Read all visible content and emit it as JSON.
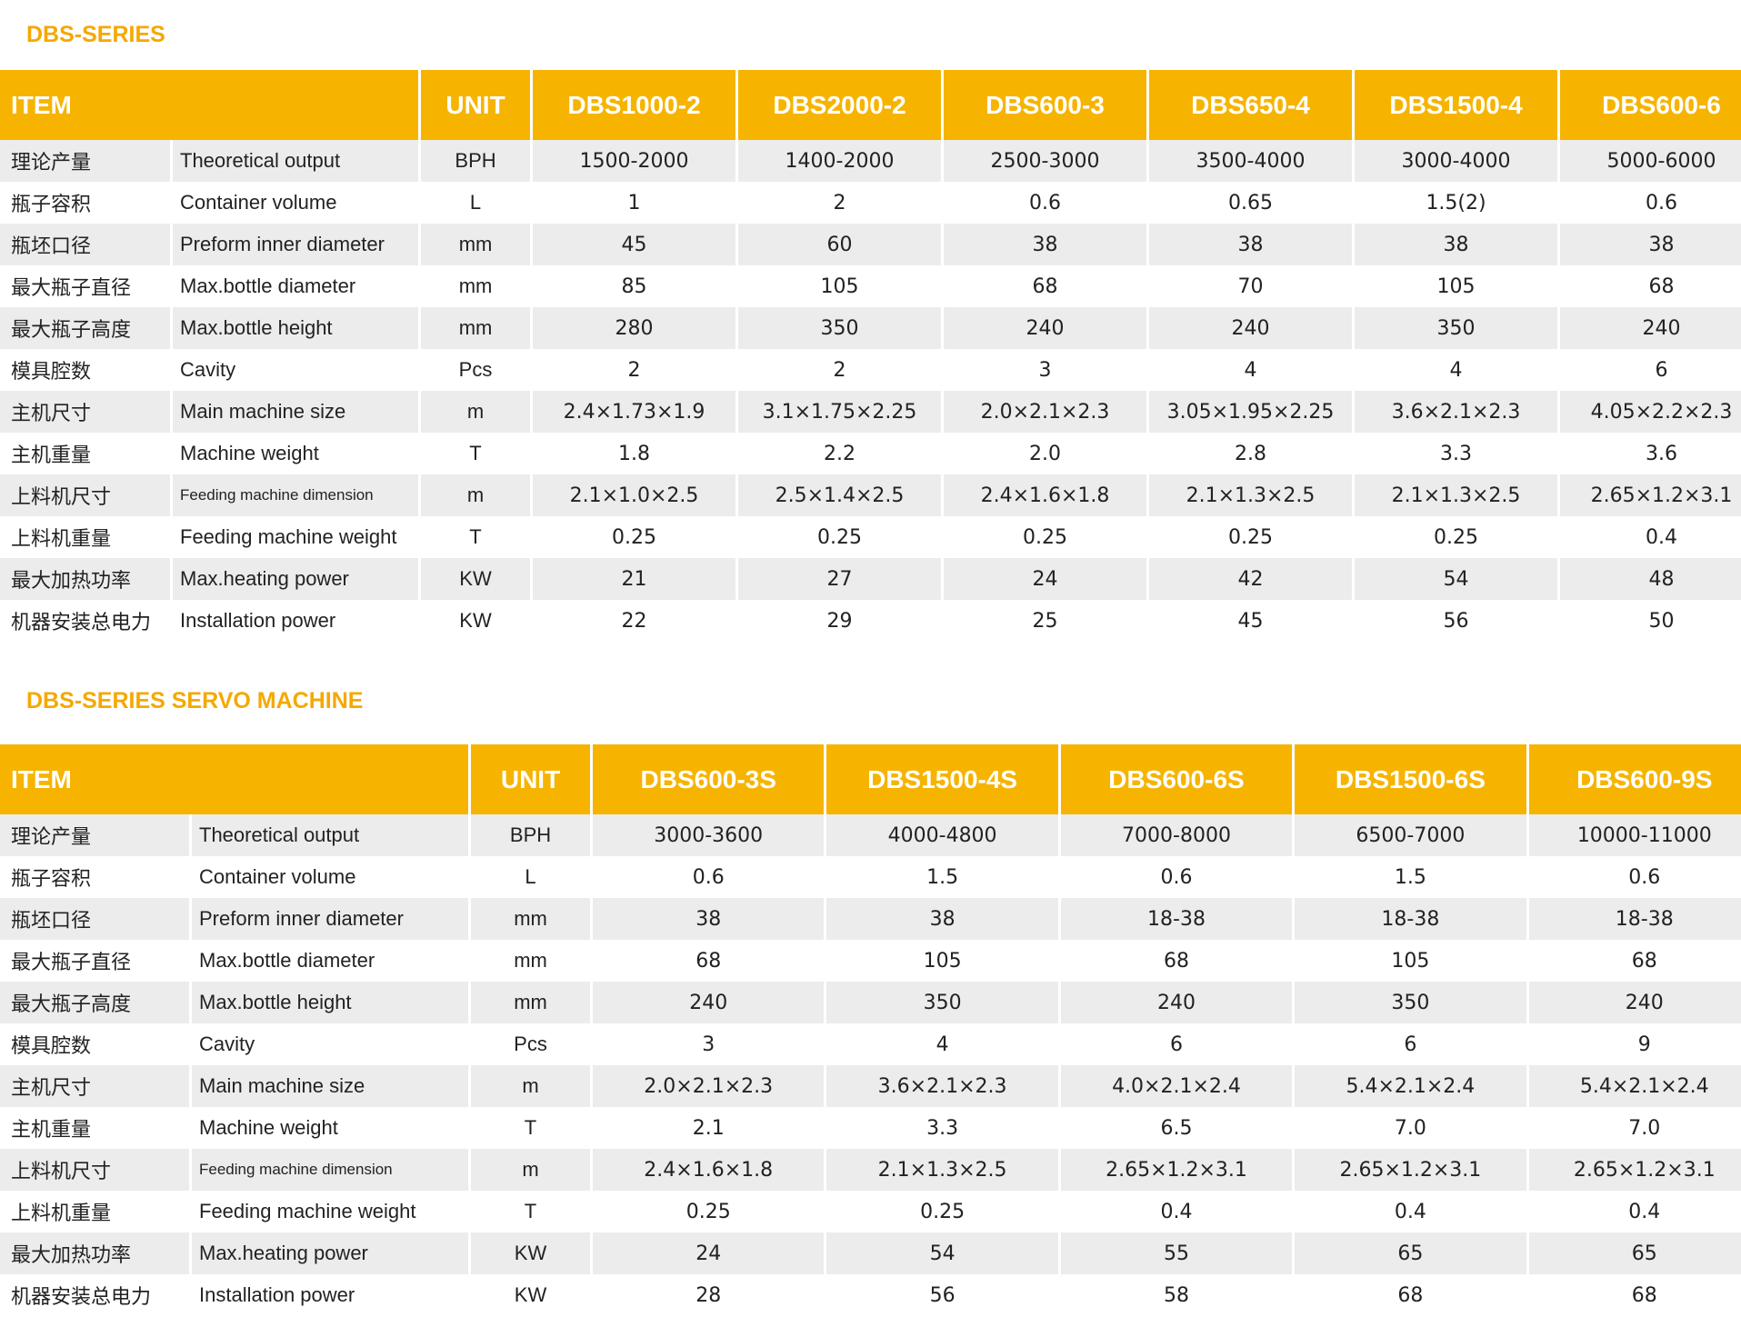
{
  "sections": [
    {
      "title": "DBS-SERIES",
      "header": [
        "ITEM",
        "UNIT",
        "DBS1000-2",
        "DBS2000-2",
        "DBS600-3",
        "DBS650-4",
        "DBS1500-4",
        "DBS600-6"
      ],
      "rows": [
        [
          "理论产量",
          "Theoretical  output",
          "BPH",
          "1500-2000",
          "1400-2000",
          "2500-3000",
          "3500-4000",
          "3000-4000",
          "5000-6000"
        ],
        [
          "瓶子容积",
          "Container volume",
          "L",
          "1",
          "2",
          "0.6",
          "0.65",
          "1.5(2)",
          "0.6"
        ],
        [
          "瓶坯口径",
          "Preform inner diameter",
          "mm",
          "45",
          "60",
          "38",
          "38",
          "38",
          "38"
        ],
        [
          "最大瓶子直径",
          "Max.bottle diameter",
          "mm",
          "85",
          "105",
          "68",
          "70",
          "105",
          "68"
        ],
        [
          "最大瓶子高度",
          "Max.bottle height",
          "mm",
          "280",
          "350",
          "240",
          "240",
          "350",
          "240"
        ],
        [
          "模具腔数",
          "Cavity",
          "Pcs",
          "2",
          "2",
          "3",
          "4",
          "4",
          "6"
        ],
        [
          "主机尺寸",
          "Main machine size",
          "m",
          "2.4×1.73×1.9",
          "3.1×1.75×2.25",
          "2.0×2.1×2.3",
          "3.05×1.95×2.25",
          "3.6×2.1×2.3",
          "4.05×2.2×2.3"
        ],
        [
          "主机重量",
          "Machine weight",
          "T",
          "1.8",
          "2.2",
          "2.0",
          "2.8",
          "3.3",
          "3.6"
        ],
        [
          "上料机尺寸",
          "Feeding machine dimension",
          "m",
          "2.1×1.0×2.5",
          "2.5×1.4×2.5",
          "2.4×1.6×1.8",
          "2.1×1.3×2.5",
          "2.1×1.3×2.5",
          "2.65×1.2×3.1"
        ],
        [
          "上料机重量",
          "Feeding machine weight",
          "T",
          "0.25",
          "0.25",
          "0.25",
          "0.25",
          "0.25",
          "0.4"
        ],
        [
          "最大加热功率",
          "Max.heating power",
          "KW",
          "21",
          "27",
          "24",
          "42",
          "54",
          "48"
        ],
        [
          "机器安装总电力",
          "Installation power",
          "KW",
          "22",
          "29",
          "25",
          "45",
          "56",
          "50"
        ]
      ]
    },
    {
      "title": "DBS-SERIES SERVO MACHINE",
      "header": [
        "ITEM",
        "UNIT",
        "DBS600-3S",
        "DBS1500-4S",
        "DBS600-6S",
        "DBS1500-6S",
        "DBS600-9S"
      ],
      "rows": [
        [
          "理论产量",
          "Theoretical  output",
          "BPH",
          "3000-3600",
          "4000-4800",
          "7000-8000",
          "6500-7000",
          "10000-11000"
        ],
        [
          "瓶子容积",
          "Container volume",
          "L",
          "0.6",
          "1.5",
          "0.6",
          "1.5",
          "0.6"
        ],
        [
          "瓶坯口径",
          "Preform inner diameter",
          "mm",
          "38",
          "38",
          "18-38",
          "18-38",
          "18-38"
        ],
        [
          "最大瓶子直径",
          "Max.bottle diameter",
          "mm",
          "68",
          "105",
          "68",
          "105",
          "68"
        ],
        [
          "最大瓶子高度",
          "Max.bottle height",
          "mm",
          "240",
          "350",
          "240",
          "350",
          "240"
        ],
        [
          "模具腔数",
          "Cavity",
          "Pcs",
          "3",
          "4",
          "6",
          "6",
          "9"
        ],
        [
          "主机尺寸",
          "Main machine size",
          "m",
          "2.0×2.1×2.3",
          "3.6×2.1×2.3",
          "4.0×2.1×2.4",
          "5.4×2.1×2.4",
          "5.4×2.1×2.4"
        ],
        [
          "主机重量",
          "Machine weight",
          "T",
          "2.1",
          "3.3",
          "6.5",
          "7.0",
          "7.0"
        ],
        [
          "上料机尺寸",
          "Feeding machine dimension",
          "m",
          "2.4×1.6×1.8",
          "2.1×1.3×2.5",
          "2.65×1.2×3.1",
          "2.65×1.2×3.1",
          "2.65×1.2×3.1"
        ],
        [
          "上料机重量",
          "Feeding machine weight",
          "T",
          "0.25",
          "0.25",
          "0.4",
          "0.4",
          "0.4"
        ],
        [
          "最大加热功率",
          "Max.heating power",
          "KW",
          "24",
          "54",
          "55",
          "65",
          "65"
        ],
        [
          "机器安装总电力",
          "Installation power",
          "KW",
          "28",
          "56",
          "58",
          "68",
          "68"
        ]
      ]
    }
  ]
}
